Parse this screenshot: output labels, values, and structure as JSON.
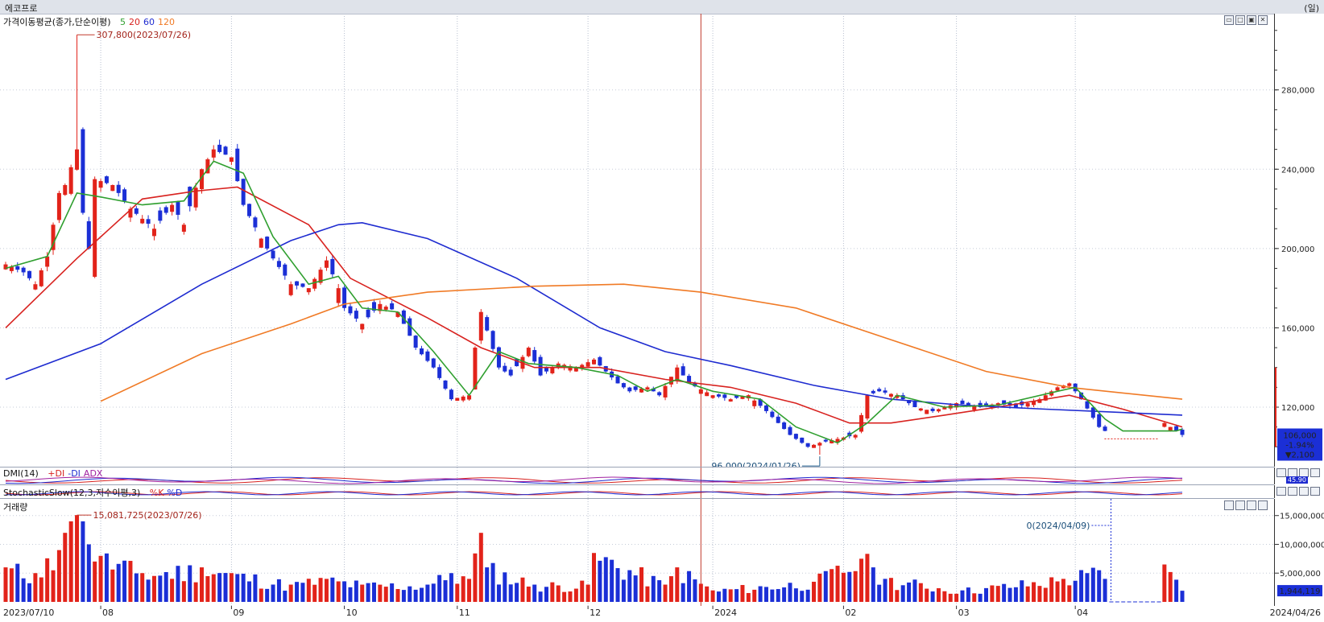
{
  "window": {
    "title": "에코프로",
    "unit_label": "(일)"
  },
  "panels": {
    "price": {
      "label": "가격이동평균(종가,단순이평)",
      "ma_labels": [
        {
          "text": "5",
          "color": "#2f9f2f"
        },
        {
          "text": "20",
          "color": "#d8221f"
        },
        {
          "text": "60",
          "color": "#1e2bd0"
        },
        {
          "text": "120",
          "color": "#f07a25"
        }
      ]
    },
    "dmi": {
      "label": "DMI(14)",
      "legend": [
        {
          "text": "+DI",
          "color": "#d8221f"
        },
        {
          "text": "-DI",
          "color": "#1e2bd0"
        },
        {
          "text": "ADX",
          "color": "#a020a0"
        }
      ],
      "value_label": "45.90"
    },
    "stoch": {
      "label": "StochasticSlow(12,3,지수이평,3)",
      "legend": [
        {
          "text": "%K",
          "color": "#d8221f"
        },
        {
          "text": "%D",
          "color": "#1e2bd0"
        }
      ]
    },
    "volume": {
      "label": "거래량"
    }
  },
  "price_box": {
    "price": "106,000",
    "change_pct": "-1.94%",
    "change": "▼2,100"
  },
  "volume_box": {
    "value": "1,944,119"
  },
  "annotations": {
    "high": "307,800(2023/07/26)",
    "low": "96,000(2024/01/26)",
    "vol_high": "15,081,725(2023/07/26)",
    "vol_zero": "0(2024/04/09)"
  },
  "chart_data": {
    "type": "candlestick",
    "title": "에코프로",
    "price_axis": {
      "ticks": [
        "280,000",
        "240,000",
        "200,000",
        "160,000",
        "120,000"
      ],
      "values": [
        280000,
        240000,
        200000,
        160000,
        120000
      ],
      "range": [
        92000,
        316000
      ]
    },
    "volume_axis": {
      "ticks": [
        "15,000,000",
        "10,000,000",
        "5,000,000"
      ],
      "values": [
        15000000,
        10000000,
        5000000
      ],
      "range": [
        0,
        16500000
      ]
    },
    "x_axis": {
      "start_label": "2023/07/10",
      "end_label": "2024/04/26",
      "labels": [
        {
          "text": "08",
          "date": "2023-08-01"
        },
        {
          "text": "09",
          "date": "2023-09-01"
        },
        {
          "text": "10",
          "date": "2023-10-04"
        },
        {
          "text": "11",
          "date": "2023-11-01"
        },
        {
          "text": "12",
          "date": "2023-12-01"
        },
        {
          "text": "2024",
          "date": "2024-01-02"
        },
        {
          "text": "02",
          "date": "2024-02-01"
        },
        {
          "text": "03",
          "date": "2024-03-04"
        },
        {
          "text": "04",
          "date": "2024-04-01"
        }
      ]
    },
    "close_anchors": [
      {
        "date": "2023-07-10",
        "close": 192000
      },
      {
        "date": "2023-07-13",
        "close": 188000
      },
      {
        "date": "2023-07-17",
        "close": 182000
      },
      {
        "date": "2023-07-19",
        "close": 196000
      },
      {
        "date": "2023-07-21",
        "close": 228000
      },
      {
        "date": "2023-07-24",
        "close": 232000
      },
      {
        "date": "2023-07-26",
        "close": 250000
      },
      {
        "date": "2023-07-27",
        "close": 218000
      },
      {
        "date": "2023-07-28",
        "close": 200000
      },
      {
        "date": "2023-07-31",
        "close": 235000
      },
      {
        "date": "2023-08-03",
        "close": 232000
      },
      {
        "date": "2023-08-08",
        "close": 220000
      },
      {
        "date": "2023-08-14",
        "close": 210000
      },
      {
        "date": "2023-08-18",
        "close": 222000
      },
      {
        "date": "2023-08-22",
        "close": 212000
      },
      {
        "date": "2023-08-25",
        "close": 240000
      },
      {
        "date": "2023-08-29",
        "close": 250000
      },
      {
        "date": "2023-09-01",
        "close": 246000
      },
      {
        "date": "2023-09-05",
        "close": 222000
      },
      {
        "date": "2023-09-08",
        "close": 205000
      },
      {
        "date": "2023-09-12",
        "close": 195000
      },
      {
        "date": "2023-09-15",
        "close": 182000
      },
      {
        "date": "2023-09-20",
        "close": 180000
      },
      {
        "date": "2023-09-25",
        "close": 194000
      },
      {
        "date": "2023-09-27",
        "close": 180000
      },
      {
        "date": "2023-10-04",
        "close": 170000
      },
      {
        "date": "2023-10-10",
        "close": 162000
      },
      {
        "date": "2023-10-13",
        "close": 172000
      },
      {
        "date": "2023-10-18",
        "close": 168000
      },
      {
        "date": "2023-10-23",
        "close": 150000
      },
      {
        "date": "2023-10-26",
        "close": 140000
      },
      {
        "date": "2023-10-31",
        "close": 124000
      },
      {
        "date": "2023-11-03",
        "close": 126000
      },
      {
        "date": "2023-11-06",
        "close": 150000
      },
      {
        "date": "2023-11-07",
        "close": 168000
      },
      {
        "date": "2023-11-10",
        "close": 140000
      },
      {
        "date": "2023-11-14",
        "close": 136000
      },
      {
        "date": "2023-11-17",
        "close": 150000
      },
      {
        "date": "2023-11-21",
        "close": 136000
      },
      {
        "date": "2023-11-24",
        "close": 142000
      },
      {
        "date": "2023-11-29",
        "close": 140000
      },
      {
        "date": "2023-12-04",
        "close": 144000
      },
      {
        "date": "2023-12-08",
        "close": 132000
      },
      {
        "date": "2023-12-12",
        "close": 128000
      },
      {
        "date": "2023-12-15",
        "close": 130000
      },
      {
        "date": "2023-12-19",
        "close": 126000
      },
      {
        "date": "2023-12-22",
        "close": 140000
      },
      {
        "date": "2023-12-27",
        "close": 132000
      },
      {
        "date": "2024-01-02",
        "close": 126000
      },
      {
        "date": "2024-01-05",
        "close": 124000
      },
      {
        "date": "2024-01-10",
        "close": 126000
      },
      {
        "date": "2024-01-15",
        "close": 118000
      },
      {
        "date": "2024-01-19",
        "close": 106000
      },
      {
        "date": "2024-01-24",
        "close": 100000
      },
      {
        "date": "2024-01-26",
        "close": 102000
      },
      {
        "date": "2024-01-31",
        "close": 104000
      },
      {
        "date": "2024-02-05",
        "close": 106000
      },
      {
        "date": "2024-02-07",
        "close": 126000
      },
      {
        "date": "2024-02-13",
        "close": 128000
      },
      {
        "date": "2024-02-16",
        "close": 126000
      },
      {
        "date": "2024-02-21",
        "close": 120000
      },
      {
        "date": "2024-02-26",
        "close": 118000
      },
      {
        "date": "2024-03-04",
        "close": 122000
      },
      {
        "date": "2024-03-08",
        "close": 120000
      },
      {
        "date": "2024-03-13",
        "close": 122000
      },
      {
        "date": "2024-03-18",
        "close": 120000
      },
      {
        "date": "2024-03-22",
        "close": 124000
      },
      {
        "date": "2024-03-27",
        "close": 130000
      },
      {
        "date": "2024-03-29",
        "close": 132000
      },
      {
        "date": "2024-04-02",
        "close": 124000
      },
      {
        "date": "2024-04-05",
        "close": 110000
      },
      {
        "date": "2024-04-08",
        "close": 108000
      },
      {
        "date": "2024-04-23",
        "close": 112000
      },
      {
        "date": "2024-04-25",
        "close": 108000
      },
      {
        "date": "2024-04-26",
        "close": 106000
      }
    ],
    "high": {
      "date": "2023-07-26",
      "value": 307800
    },
    "low": {
      "date": "2024-01-26",
      "value": 96000
    },
    "ma_lines": [
      {
        "name": "20",
        "color": "#d8221f",
        "points": [
          [
            "2023-07-10",
            160000
          ],
          [
            "2023-07-26",
            195000
          ],
          [
            "2023-08-10",
            225000
          ],
          [
            "2023-08-24",
            229000
          ],
          [
            "2023-09-04",
            231000
          ],
          [
            "2023-09-20",
            212000
          ],
          [
            "2023-10-05",
            185000
          ],
          [
            "2023-10-25",
            165000
          ],
          [
            "2023-11-07",
            150000
          ],
          [
            "2023-11-20",
            140000
          ],
          [
            "2023-12-05",
            140000
          ],
          [
            "2023-12-20",
            134000
          ],
          [
            "2024-01-05",
            130000
          ],
          [
            "2024-01-22",
            122000
          ],
          [
            "2024-02-02",
            112000
          ],
          [
            "2024-02-15",
            112000
          ],
          [
            "2024-02-28",
            116000
          ],
          [
            "2024-03-15",
            121000
          ],
          [
            "2024-03-29",
            126000
          ],
          [
            "2024-04-12",
            119000
          ],
          [
            "2024-04-26",
            110000
          ]
        ]
      },
      {
        "name": "60",
        "color": "#1e2bd0",
        "points": [
          [
            "2023-07-10",
            134000
          ],
          [
            "2023-08-01",
            152000
          ],
          [
            "2023-08-25",
            182000
          ],
          [
            "2023-09-15",
            204000
          ],
          [
            "2023-09-27",
            212000
          ],
          [
            "2023-10-10",
            213000
          ],
          [
            "2023-10-25",
            205000
          ],
          [
            "2023-11-15",
            185000
          ],
          [
            "2023-12-05",
            160000
          ],
          [
            "2023-12-20",
            148000
          ],
          [
            "2024-01-05",
            141000
          ],
          [
            "2024-01-25",
            131000
          ],
          [
            "2024-02-15",
            124000
          ],
          [
            "2024-03-05",
            121000
          ],
          [
            "2024-03-25",
            119000
          ],
          [
            "2024-04-26",
            116000
          ]
        ]
      },
      {
        "name": "120",
        "color": "#f07a25",
        "points": [
          [
            "2023-08-01",
            123000
          ],
          [
            "2023-08-25",
            147000
          ],
          [
            "2023-09-15",
            162000
          ],
          [
            "2023-10-04",
            172000
          ],
          [
            "2023-10-25",
            178000
          ],
          [
            "2023-11-20",
            181000
          ],
          [
            "2023-12-11",
            182000
          ],
          [
            "2023-12-29",
            178000
          ],
          [
            "2024-01-20",
            170000
          ],
          [
            "2024-02-15",
            154000
          ],
          [
            "2024-03-10",
            138000
          ],
          [
            "2024-03-29",
            130000
          ],
          [
            "2024-04-26",
            124000
          ]
        ]
      },
      {
        "name": "5",
        "color": "#2f9f2f",
        "points": [
          [
            "2023-07-10",
            190000
          ],
          [
            "2023-07-19",
            196000
          ],
          [
            "2023-07-26",
            228000
          ],
          [
            "2023-08-01",
            226000
          ],
          [
            "2023-08-10",
            222000
          ],
          [
            "2023-08-22",
            224000
          ],
          [
            "2023-08-29",
            244000
          ],
          [
            "2023-09-05",
            238000
          ],
          [
            "2023-09-12",
            206000
          ],
          [
            "2023-09-20",
            182000
          ],
          [
            "2023-09-27",
            186000
          ],
          [
            "2023-10-10",
            170000
          ],
          [
            "2023-10-18",
            168000
          ],
          [
            "2023-10-26",
            148000
          ],
          [
            "2023-11-03",
            126000
          ],
          [
            "2023-11-10",
            148000
          ],
          [
            "2023-11-17",
            142000
          ],
          [
            "2023-11-29",
            140000
          ],
          [
            "2023-12-08",
            136000
          ],
          [
            "2023-12-15",
            128000
          ],
          [
            "2023-12-22",
            134000
          ],
          [
            "2024-01-02",
            128000
          ],
          [
            "2024-01-12",
            124000
          ],
          [
            "2024-01-22",
            110000
          ],
          [
            "2024-01-31",
            102000
          ],
          [
            "2024-02-07",
            112000
          ],
          [
            "2024-02-16",
            126000
          ],
          [
            "2024-02-28",
            120000
          ],
          [
            "2024-03-13",
            121000
          ],
          [
            "2024-03-27",
            128000
          ],
          [
            "2024-04-01",
            130000
          ],
          [
            "2024-04-08",
            114000
          ],
          [
            "2024-04-12",
            108000
          ],
          [
            "2024-04-25",
            108000
          ],
          [
            "2024-04-26",
            109000
          ]
        ]
      }
    ],
    "volume_anchors": [
      [
        "2023-07-10",
        6
      ],
      [
        "2023-07-17",
        5
      ],
      [
        "2023-07-21",
        9
      ],
      [
        "2023-07-24",
        12
      ],
      [
        "2023-07-25",
        14
      ],
      [
        "2023-07-26",
        15.08
      ],
      [
        "2023-07-27",
        14
      ],
      [
        "2023-07-28",
        10
      ],
      [
        "2023-08-01",
        8
      ],
      [
        "2023-08-10",
        5
      ],
      [
        "2023-08-25",
        6
      ],
      [
        "2023-09-01",
        5
      ],
      [
        "2023-09-15",
        3
      ],
      [
        "2023-09-25",
        4
      ],
      [
        "2023-10-10",
        3
      ],
      [
        "2023-10-25",
        3
      ],
      [
        "2023-10-31",
        5
      ],
      [
        "2023-11-03",
        4
      ],
      [
        "2023-11-07",
        12
      ],
      [
        "2023-11-08",
        6
      ],
      [
        "2023-11-20",
        3
      ],
      [
        "2023-12-01",
        3
      ],
      [
        "2023-12-04",
        8.5
      ],
      [
        "2023-12-20",
        3
      ],
      [
        "2023-12-22",
        6
      ],
      [
        "2024-01-02",
        2
      ],
      [
        "2024-01-25",
        3.5
      ],
      [
        "2024-02-06",
        7.5
      ],
      [
        "2024-02-08",
        6
      ],
      [
        "2024-02-14",
        4
      ],
      [
        "2024-03-05",
        2
      ],
      [
        "2024-03-28",
        4
      ],
      [
        "2024-04-03",
        5
      ],
      [
        "2024-04-05",
        5.5
      ],
      [
        "2024-04-08",
        4
      ],
      [
        "2024-04-23",
        6.5
      ],
      [
        "2024-04-26",
        1.94
      ]
    ],
    "bearish_dates": [
      "2023-07-12",
      "2023-07-13",
      "2023-07-14",
      "2023-07-27",
      "2023-07-28",
      "2023-08-02",
      "2023-08-04",
      "2023-08-07",
      "2023-08-09",
      "2023-08-11",
      "2023-08-16",
      "2023-08-17",
      "2023-08-21",
      "2023-08-23",
      "2023-08-30",
      "2023-08-31",
      "2023-09-04",
      "2023-09-05",
      "2023-09-06",
      "2023-09-07",
      "2023-09-11",
      "2023-09-12",
      "2023-09-13",
      "2023-09-14",
      "2023-09-18",
      "2023-09-19",
      "2023-09-26",
      "2023-10-04",
      "2023-10-05",
      "2023-10-06",
      "2023-10-11",
      "2023-10-12",
      "2023-10-17",
      "2023-10-19",
      "2023-10-20",
      "2023-10-23",
      "2023-10-24",
      "2023-10-25",
      "2023-10-26",
      "2023-10-27",
      "2023-10-30",
      "2023-10-31",
      "2023-11-08",
      "2023-11-09",
      "2023-11-10",
      "2023-11-13",
      "2023-11-14",
      "2023-11-15",
      "2023-11-20",
      "2023-11-21",
      "2023-11-22",
      "2023-12-05",
      "2023-12-06",
      "2023-12-07",
      "2023-12-08",
      "2023-12-11",
      "2023-12-12",
      "2023-12-13",
      "2023-12-18",
      "2023-12-19",
      "2023-12-26",
      "2023-12-27",
      "2023-12-28",
      "2024-01-03",
      "2024-01-04",
      "2024-01-08",
      "2024-01-12",
      "2024-01-15",
      "2024-01-16",
      "2024-01-17",
      "2024-01-18",
      "2024-01-19",
      "2024-01-22",
      "2024-01-23",
      "2024-01-24",
      "2024-01-29",
      "2024-02-02",
      "2024-02-08",
      "2024-02-13",
      "2024-02-14",
      "2024-02-19",
      "2024-02-20",
      "2024-02-21",
      "2024-02-26",
      "2024-03-05",
      "2024-03-06",
      "2024-03-08",
      "2024-03-11",
      "2024-03-14",
      "2024-03-15",
      "2024-03-18",
      "2024-03-19",
      "2024-04-01",
      "2024-04-02",
      "2024-04-03",
      "2024-04-04",
      "2024-04-05",
      "2024-04-08",
      "2024-04-25",
      "2024-04-26"
    ],
    "gap_range": [
      "2024-04-09",
      "2024-04-22"
    ],
    "event_line_date": "2023-12-29"
  }
}
